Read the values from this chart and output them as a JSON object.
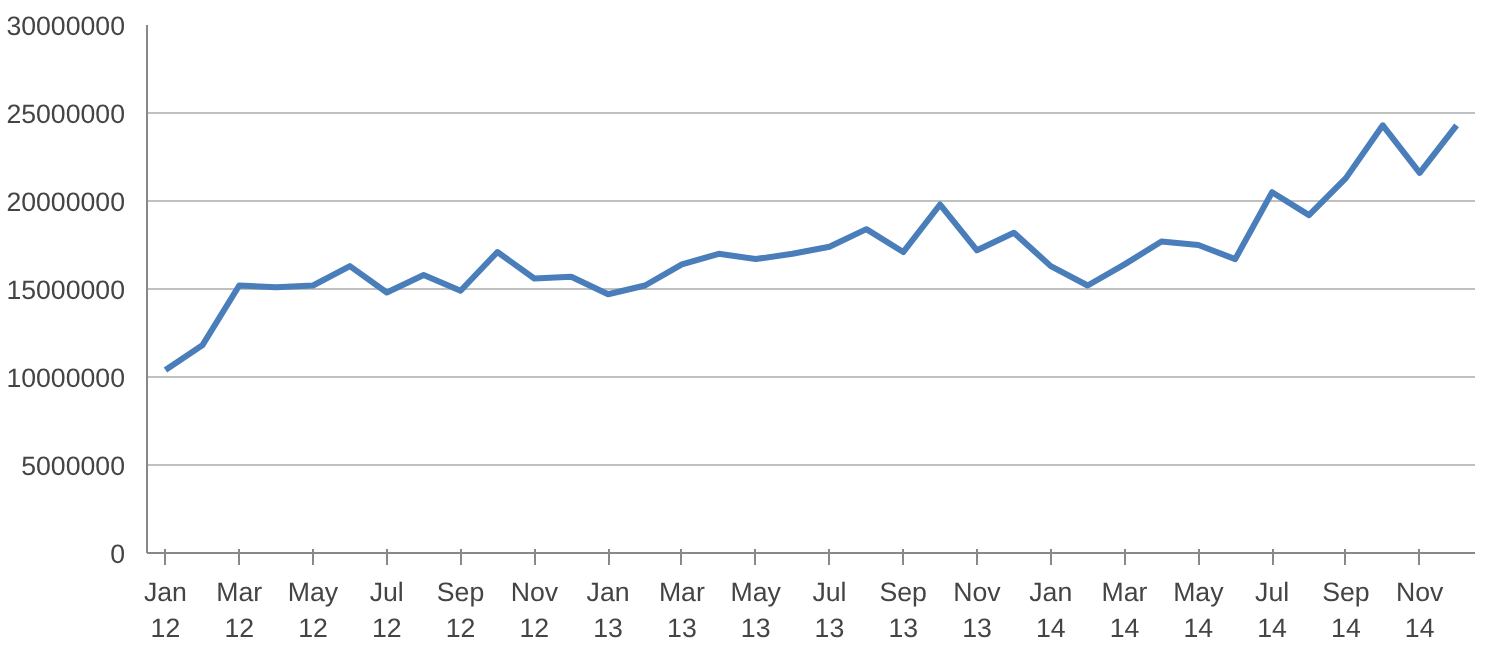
{
  "chart_data": {
    "type": "line",
    "categories": [
      "Jan 12",
      null,
      "Mar 12",
      null,
      "May 12",
      null,
      "Jul 12",
      null,
      "Sep 12",
      null,
      "Nov 12",
      null,
      "Jan 13",
      null,
      "Mar 13",
      null,
      "May 13",
      null,
      "Jul 13",
      null,
      "Sep 13",
      null,
      "Nov 13",
      null,
      "Jan 14",
      null,
      "Mar 14",
      null,
      "May 14",
      null,
      "Jul 14",
      null,
      "Sep 14",
      null,
      "Nov 14",
      null
    ],
    "series": [
      {
        "color": "#4a7ebb",
        "values": [
          10400000,
          11800000,
          15200000,
          15100000,
          15200000,
          16300000,
          14800000,
          15800000,
          14900000,
          17100000,
          15600000,
          15700000,
          14700000,
          15200000,
          16400000,
          17000000,
          16700000,
          17000000,
          17400000,
          18400000,
          17100000,
          19800000,
          17200000,
          18200000,
          16300000,
          15200000,
          16400000,
          17700000,
          17500000,
          16700000,
          20500000,
          19200000,
          21300000,
          24300000,
          21600000,
          24300000
        ]
      }
    ],
    "ylim": [
      0,
      30000000
    ],
    "yticks": [
      0,
      5000000,
      10000000,
      15000000,
      20000000,
      25000000,
      30000000
    ],
    "grid": "y",
    "marker": "none",
    "line_style": "solid"
  }
}
